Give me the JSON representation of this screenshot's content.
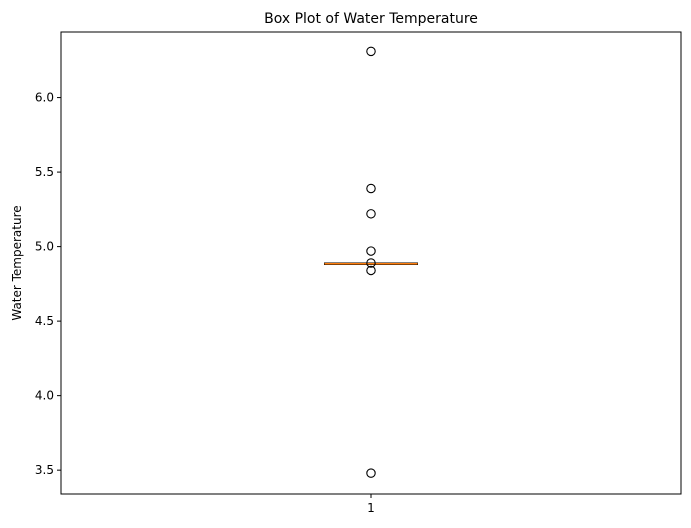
{
  "chart_data": {
    "type": "box",
    "title": "Box Plot of Water Temperature",
    "xlabel": "",
    "ylabel": "Water Temperature",
    "categories": [
      "1"
    ],
    "xlim": [
      0.5,
      1.5
    ],
    "ylim": [
      3.34,
      6.44
    ],
    "yticks": [
      3.5,
      4.0,
      4.5,
      5.0,
      5.5,
      6.0
    ],
    "ytick_labels": [
      "3.5",
      "4.0",
      "4.5",
      "5.0",
      "5.5",
      "6.0"
    ],
    "grid": false,
    "boxes": [
      {
        "category": "1",
        "q1": 4.88,
        "median": 4.885,
        "q3": 4.89,
        "whisker_low": 4.88,
        "whisker_high": 4.89,
        "outliers": [
          6.31,
          5.39,
          5.22,
          4.97,
          4.89,
          4.84,
          3.48
        ]
      }
    ],
    "colors": {
      "box_edge": "#000000",
      "median": "#ff7f0e",
      "outlier_edge": "#000000",
      "axes": "#000000"
    }
  }
}
